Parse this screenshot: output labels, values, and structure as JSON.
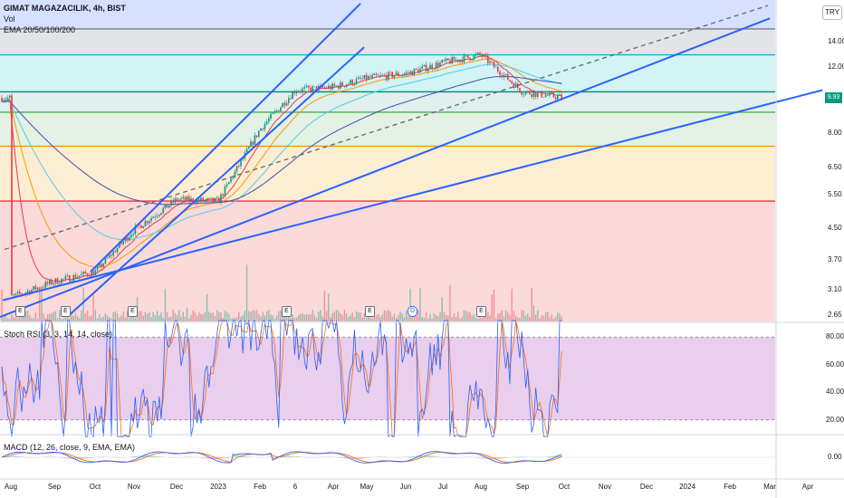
{
  "header": {
    "symbol_line": "GIMAT MAGAZACILIK, 4h, BIST",
    "volume_label": "Vol",
    "ema_label": "EMA 20/50/100/200",
    "currency": "TRY"
  },
  "price_tag": "9.93",
  "stoch_label": "Stoch RSI (3, 3, 14, 14, close)",
  "macd_label": "MACD (12, 26, close, 9, EMA, EMA)",
  "events": [
    "E",
    "E",
    "E",
    "E",
    "E",
    "D",
    "E"
  ],
  "colors": {
    "candle_up": "#089981",
    "candle_down": "#f23645",
    "trendline": "#2962ff",
    "ema20": "#f23645",
    "ema50": "#ff9800",
    "ema100": "#4dd0e1",
    "ema200": "#3f51b5",
    "stoch_k": "#2962ff",
    "stoch_d": "#ff6d00",
    "stoch_band": "#e1bee7",
    "macd_line": "#2962ff",
    "signal_line": "#ff6d00"
  },
  "chart_data": [
    {
      "type": "line",
      "title": "GIMAT MAGAZACILIK, 4h, BIST",
      "yscale": "log",
      "ylim": [
        2.55,
        18.0
      ],
      "y_ticks": [
        2.65,
        3.1,
        3.7,
        4.5,
        5.5,
        6.5,
        8.0,
        9.93,
        12.0,
        14.0
      ],
      "x_ticks": [
        "Aug",
        "Sep",
        "Oct",
        "Nov",
        "Dec",
        "2023",
        "Feb",
        "6",
        "Apr",
        "May",
        "Jun",
        "Jul",
        "Aug",
        "Sep",
        "Oct",
        "Nov",
        "Dec",
        "2024",
        "Feb",
        "Mar",
        "Apr"
      ],
      "horizontal_levels": [
        {
          "value": 15.1,
          "color": "#787b86"
        },
        {
          "value": 12.9,
          "color": "#00bcd4"
        },
        {
          "value": 10.3,
          "color": "#00897b"
        },
        {
          "value": 9.1,
          "color": "#4caf50"
        },
        {
          "value": 7.4,
          "color": "#ff9800"
        },
        {
          "value": 5.3,
          "color": "#f23645"
        }
      ],
      "zones": [
        {
          "from": 15.1,
          "to": 18.0,
          "color": "#d6e0ff"
        },
        {
          "from": 12.9,
          "to": 15.1,
          "color": "#e3e4e8"
        },
        {
          "from": 10.3,
          "to": 12.9,
          "color": "#d4f3f5"
        },
        {
          "from": 9.1,
          "to": 10.3,
          "color": "#e0f0ec"
        },
        {
          "from": 7.4,
          "to": 9.1,
          "color": "#e3f2e4"
        },
        {
          "from": 5.3,
          "to": 7.4,
          "color": "#fdedd3"
        },
        {
          "from": 2.55,
          "to": 5.3,
          "color": "#fbdada"
        }
      ],
      "series": [
        {
          "values": [
            {
              "x": "Aug",
              "y": 2.95
            },
            {
              "x": "Sep",
              "y": 3.25
            },
            {
              "x": "Oct",
              "y": 3.45
            },
            {
              "x": "Nov",
              "y": 4.45
            },
            {
              "x": "Dec",
              "y": 5.35
            },
            {
              "x": "2023",
              "y": 5.3
            },
            {
              "x": "Feb",
              "y": 8.2
            },
            {
              "x": "6",
              "y": 10.4
            },
            {
              "x": "Apr",
              "y": 10.6
            },
            {
              "x": "May",
              "y": 11.2
            },
            {
              "x": "Jun",
              "y": 11.5
            },
            {
              "x": "Jul",
              "y": 12.3
            },
            {
              "x": "Aug",
              "y": 12.9
            },
            {
              "x": "Sep",
              "y": 10.3
            },
            {
              "x": "Oct",
              "y": 9.93
            }
          ]
        }
      ],
      "last_price": 9.93
    },
    {
      "type": "line",
      "title": "Stoch RSI (3, 3, 14, 14, close)",
      "ylim": [
        10,
        90
      ],
      "y_ticks": [
        20.0,
        40.0,
        60.0,
        80.0
      ],
      "bands": [
        20,
        80
      ]
    },
    {
      "type": "line",
      "title": "MACD (12, 26, close, 9, EMA, EMA)",
      "y_ticks": [
        0.0
      ]
    }
  ]
}
